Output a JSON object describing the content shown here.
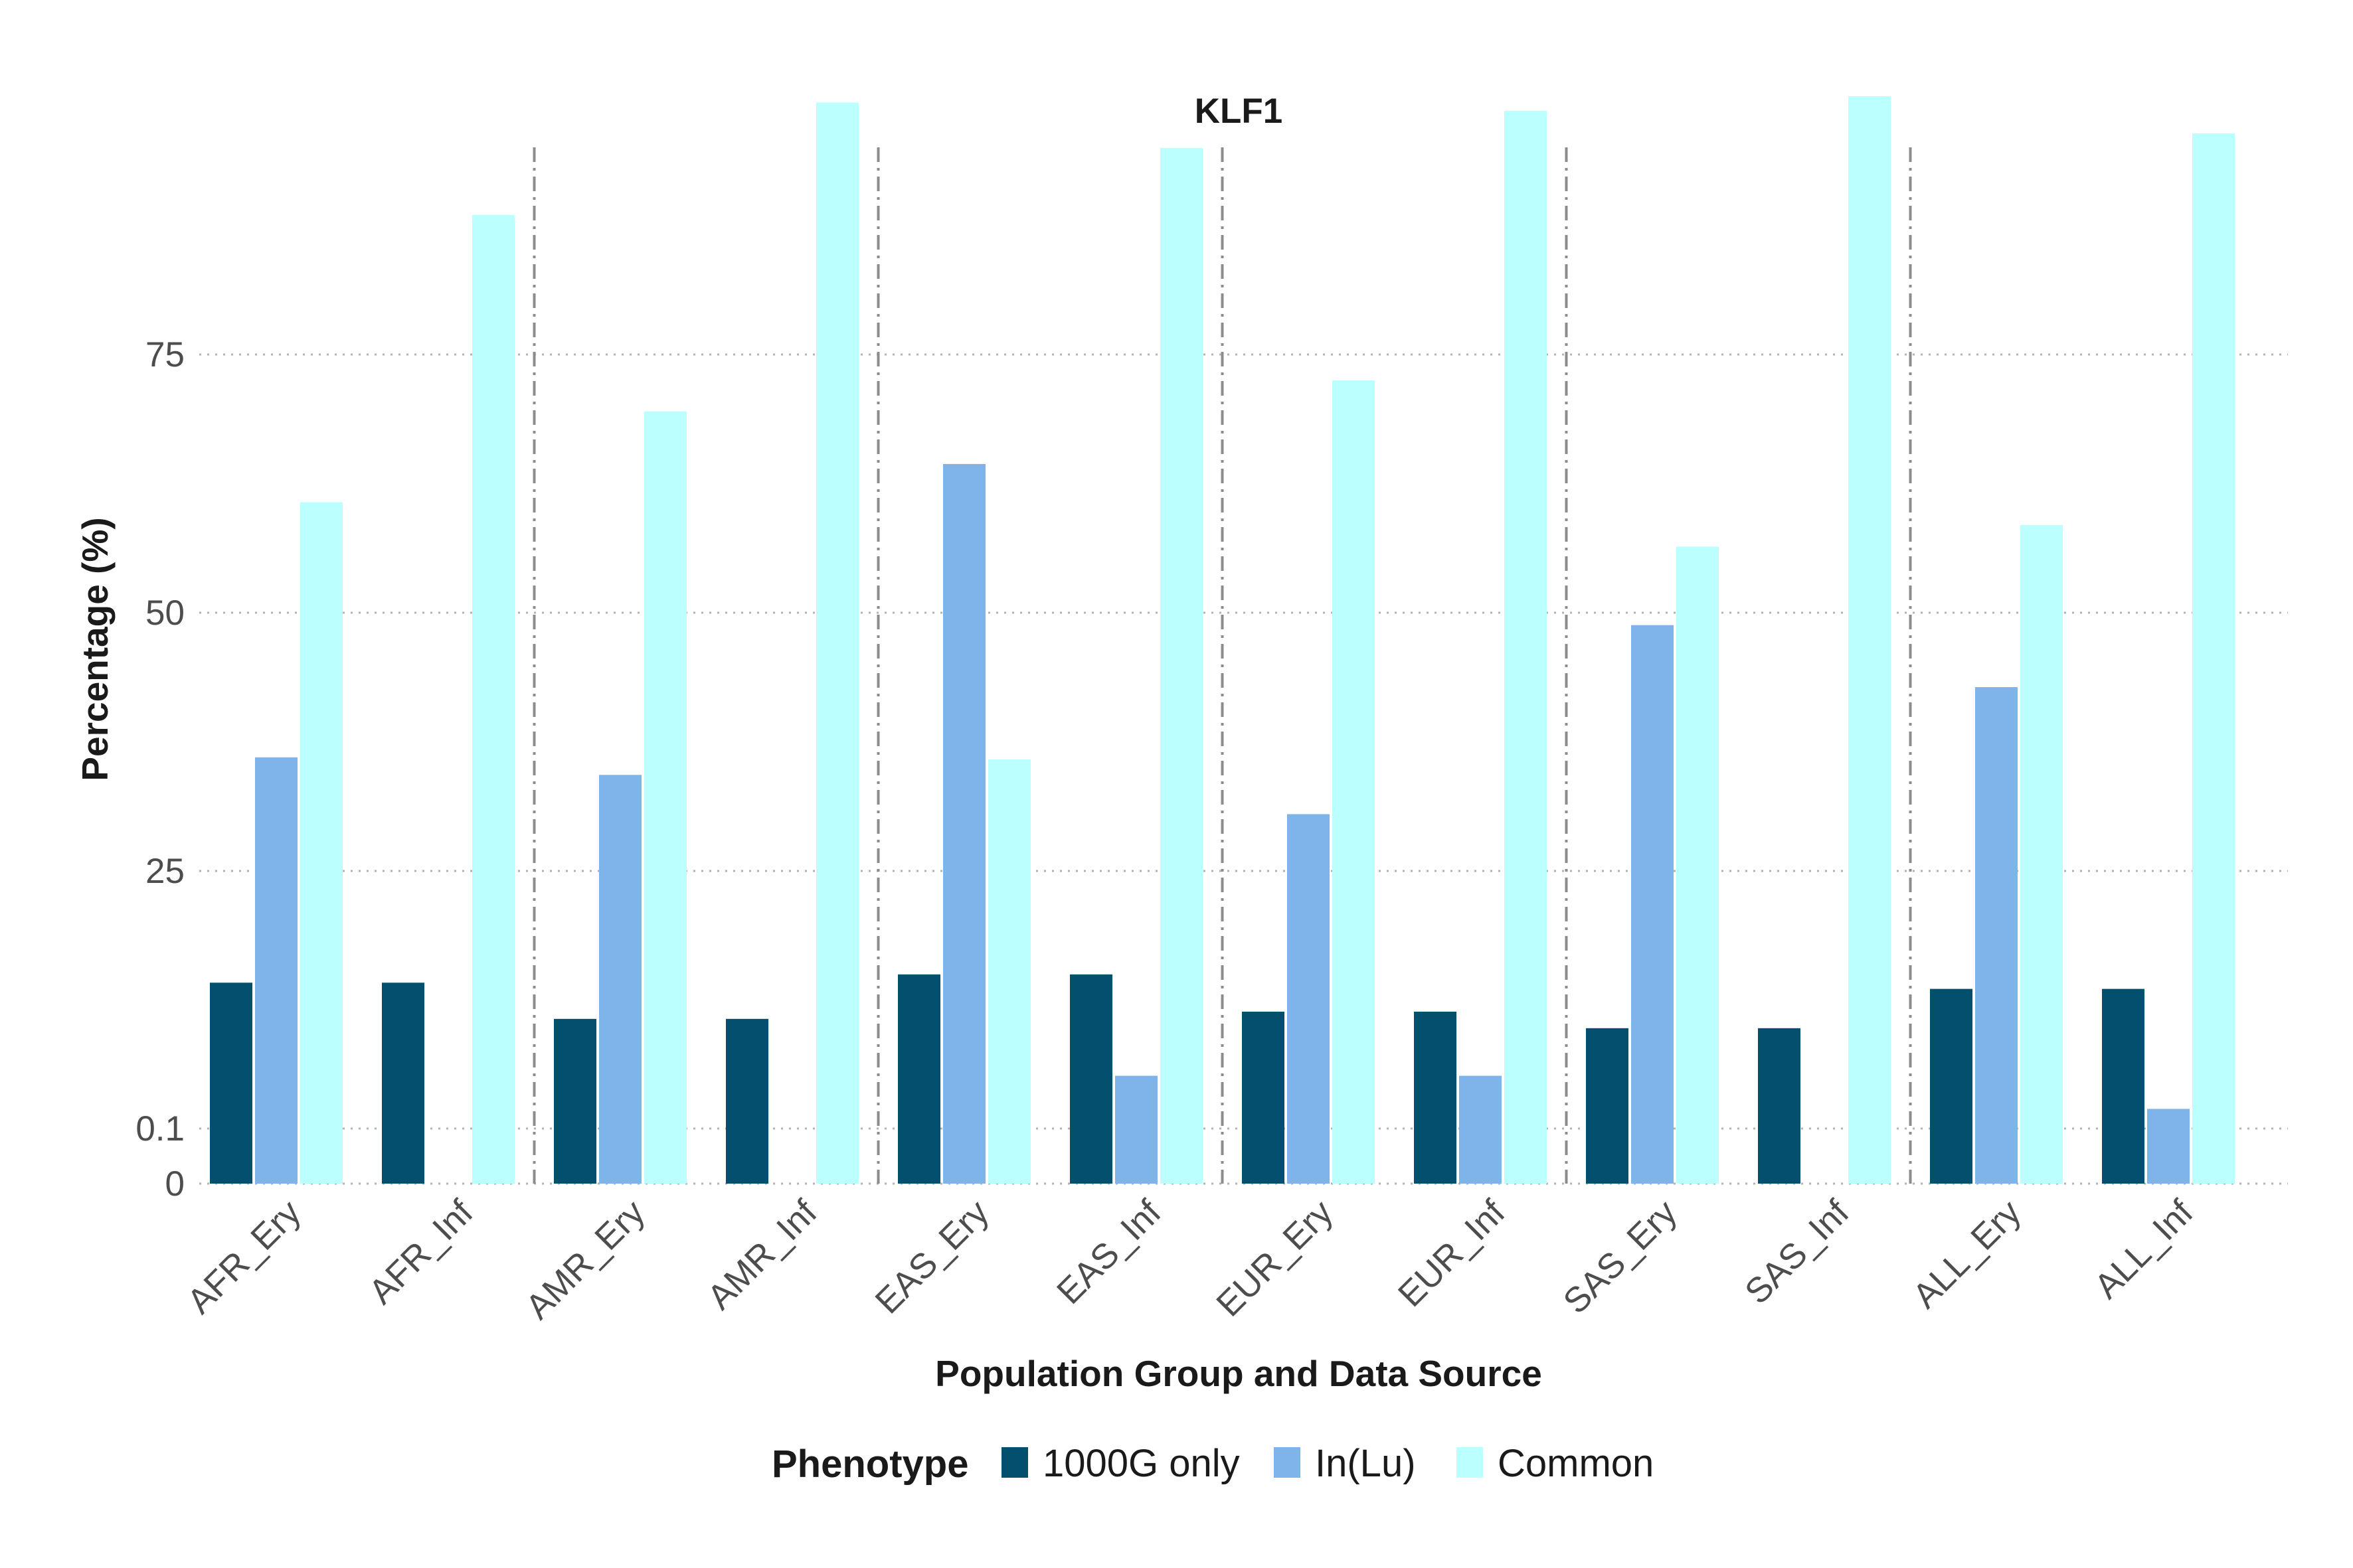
{
  "chart_data": {
    "type": "bar",
    "title": "KLF1",
    "xlabel": "Population Group and Data Source",
    "ylabel": "Percentage (%)",
    "y_ticks": [
      {
        "label": "0",
        "value": 0
      },
      {
        "label": "0.1",
        "value": 0.1
      },
      {
        "label": "25",
        "value": 25
      },
      {
        "label": "50",
        "value": 50
      },
      {
        "label": "75",
        "value": 75
      }
    ],
    "ylim": [
      0,
      100
    ],
    "grid": "horizontal dotted",
    "group_separators": "dashed vertical lines between population groups",
    "categories": [
      "AFR_Ery",
      "AFR_Inf",
      "AMR_Ery",
      "AMR_Inf",
      "EAS_Ery",
      "EAS_Inf",
      "EUR_Ery",
      "EUR_Inf",
      "SAS_Ery",
      "SAS_Inf",
      "ALL_Ery",
      "ALL_Inf"
    ],
    "series": [
      {
        "name": "1000G only",
        "color": "#02506E",
        "values": [
          14.2,
          14.2,
          10.7,
          10.7,
          15,
          15,
          11.4,
          11.4,
          9.8,
          9.8,
          13.6,
          13.6
        ]
      },
      {
        "name": "In(Lu)",
        "color": "#7FB4EA",
        "values": [
          36,
          0,
          34.3,
          0,
          64.4,
          5.2,
          30.5,
          5.2,
          48.8,
          0,
          42.8,
          2
        ]
      },
      {
        "name": "Common",
        "color": "#BBFFFF",
        "values": [
          60.7,
          88.5,
          69.5,
          99.4,
          35.8,
          95,
          72.5,
          98.6,
          56.4,
          100,
          58.5,
          96.4
        ]
      }
    ],
    "legend": {
      "title": "Phenotype",
      "position": "bottom"
    }
  }
}
